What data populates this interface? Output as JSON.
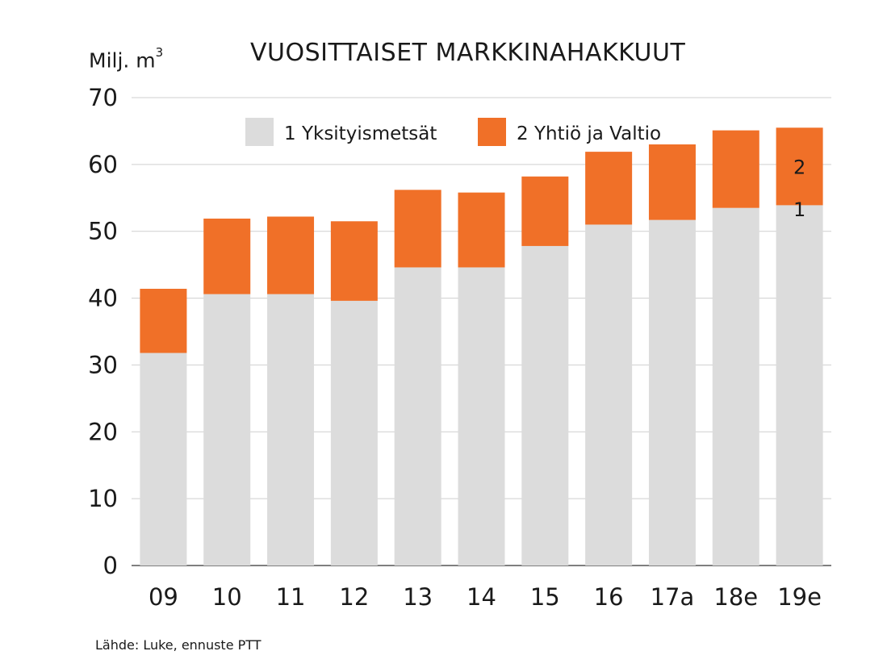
{
  "chart_data": {
    "type": "bar",
    "stacked": true,
    "title": "VUOSITTAISET MARKKINAHAKKUUT",
    "ylabel": "Milj. m",
    "ylabel_sup": "3",
    "source": "Lähde: Luke, ennuste PTT",
    "categories": [
      "09",
      "10",
      "11",
      "12",
      "13",
      "14",
      "15",
      "16",
      "17a",
      "18e",
      "19e"
    ],
    "ylim": [
      0,
      70
    ],
    "yticks": [
      0,
      10,
      20,
      30,
      40,
      50,
      60,
      70
    ],
    "grid": true,
    "legend_position": "top",
    "series": [
      {
        "name": "1 Yksityismetsät",
        "color": "#dcdcdc",
        "values": [
          31.8,
          40.6,
          40.6,
          39.6,
          44.6,
          44.6,
          47.8,
          51.0,
          51.7,
          53.5,
          53.9
        ]
      },
      {
        "name": "2 Yhtiö ja Valtio",
        "color": "#f07028",
        "values": [
          9.6,
          11.3,
          11.6,
          11.9,
          11.6,
          11.2,
          10.4,
          10.9,
          11.3,
          11.6,
          11.6
        ]
      }
    ],
    "annotations": [
      "1",
      "2"
    ]
  }
}
